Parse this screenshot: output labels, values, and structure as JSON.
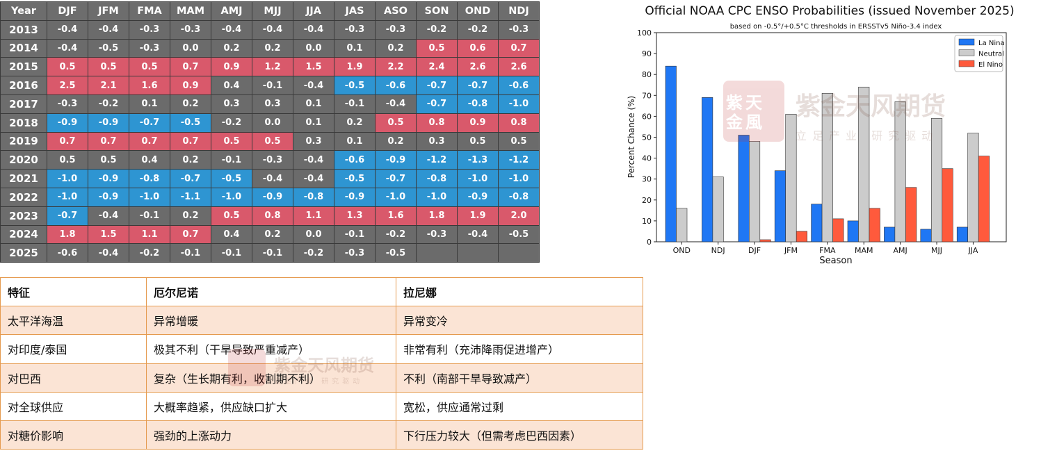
{
  "oni_table": {
    "year_header": "Year",
    "seasons": [
      "DJF",
      "JFM",
      "FMA",
      "MAM",
      "AMJ",
      "MJJ",
      "JJA",
      "JAS",
      "ASO",
      "SON",
      "OND",
      "NDJ"
    ],
    "rows": [
      {
        "year": "2013",
        "values": [
          "-0.4",
          "-0.4",
          "-0.3",
          "-0.3",
          "-0.4",
          "-0.4",
          "-0.4",
          "-0.3",
          "-0.3",
          "-0.2",
          "-0.2",
          "-0.3"
        ],
        "phase": [
          "n",
          "n",
          "n",
          "n",
          "n",
          "n",
          "n",
          "n",
          "n",
          "n",
          "n",
          "n"
        ]
      },
      {
        "year": "2014",
        "values": [
          "-0.4",
          "-0.5",
          "-0.3",
          "0.0",
          "0.2",
          "0.2",
          "0.0",
          "0.1",
          "0.2",
          "0.5",
          "0.6",
          "0.7"
        ],
        "phase": [
          "n",
          "n",
          "n",
          "n",
          "n",
          "n",
          "n",
          "n",
          "n",
          "w",
          "w",
          "w"
        ]
      },
      {
        "year": "2015",
        "values": [
          "0.5",
          "0.5",
          "0.5",
          "0.7",
          "0.9",
          "1.2",
          "1.5",
          "1.9",
          "2.2",
          "2.4",
          "2.6",
          "2.6"
        ],
        "phase": [
          "w",
          "w",
          "w",
          "w",
          "w",
          "w",
          "w",
          "w",
          "w",
          "w",
          "w",
          "w"
        ]
      },
      {
        "year": "2016",
        "values": [
          "2.5",
          "2.1",
          "1.6",
          "0.9",
          "0.4",
          "-0.1",
          "-0.4",
          "-0.5",
          "-0.6",
          "-0.7",
          "-0.7",
          "-0.6"
        ],
        "phase": [
          "w",
          "w",
          "w",
          "w",
          "n",
          "n",
          "n",
          "c",
          "c",
          "c",
          "c",
          "c"
        ]
      },
      {
        "year": "2017",
        "values": [
          "-0.3",
          "-0.2",
          "0.1",
          "0.2",
          "0.3",
          "0.3",
          "0.1",
          "-0.1",
          "-0.4",
          "-0.7",
          "-0.8",
          "-1.0"
        ],
        "phase": [
          "n",
          "n",
          "n",
          "n",
          "n",
          "n",
          "n",
          "n",
          "n",
          "c",
          "c",
          "c"
        ]
      },
      {
        "year": "2018",
        "values": [
          "-0.9",
          "-0.9",
          "-0.7",
          "-0.5",
          "-0.2",
          "0.0",
          "0.1",
          "0.2",
          "0.5",
          "0.8",
          "0.9",
          "0.8"
        ],
        "phase": [
          "c",
          "c",
          "c",
          "c",
          "n",
          "n",
          "n",
          "n",
          "w",
          "w",
          "w",
          "w"
        ]
      },
      {
        "year": "2019",
        "values": [
          "0.7",
          "0.7",
          "0.7",
          "0.7",
          "0.5",
          "0.5",
          "0.3",
          "0.1",
          "0.2",
          "0.3",
          "0.5",
          "0.5"
        ],
        "phase": [
          "w",
          "w",
          "w",
          "w",
          "w",
          "w",
          "n",
          "n",
          "n",
          "n",
          "n",
          "n"
        ]
      },
      {
        "year": "2020",
        "values": [
          "0.5",
          "0.5",
          "0.4",
          "0.2",
          "-0.1",
          "-0.3",
          "-0.4",
          "-0.6",
          "-0.9",
          "-1.2",
          "-1.3",
          "-1.2"
        ],
        "phase": [
          "n",
          "n",
          "n",
          "n",
          "n",
          "n",
          "n",
          "c",
          "c",
          "c",
          "c",
          "c"
        ]
      },
      {
        "year": "2021",
        "values": [
          "-1.0",
          "-0.9",
          "-0.8",
          "-0.7",
          "-0.5",
          "-0.4",
          "-0.4",
          "-0.5",
          "-0.7",
          "-0.8",
          "-1.0",
          "-1.0"
        ],
        "phase": [
          "c",
          "c",
          "c",
          "c",
          "c",
          "n",
          "n",
          "c",
          "c",
          "c",
          "c",
          "c"
        ]
      },
      {
        "year": "2022",
        "values": [
          "-1.0",
          "-0.9",
          "-1.0",
          "-1.1",
          "-1.0",
          "-0.9",
          "-0.8",
          "-0.9",
          "-1.0",
          "-1.0",
          "-0.9",
          "-0.8"
        ],
        "phase": [
          "c",
          "c",
          "c",
          "c",
          "c",
          "c",
          "c",
          "c",
          "c",
          "c",
          "c",
          "c"
        ]
      },
      {
        "year": "2023",
        "values": [
          "-0.7",
          "-0.4",
          "-0.1",
          "0.2",
          "0.5",
          "0.8",
          "1.1",
          "1.3",
          "1.6",
          "1.8",
          "1.9",
          "2.0"
        ],
        "phase": [
          "c",
          "n",
          "n",
          "n",
          "w",
          "w",
          "w",
          "w",
          "w",
          "w",
          "w",
          "w"
        ]
      },
      {
        "year": "2024",
        "values": [
          "1.8",
          "1.5",
          "1.1",
          "0.7",
          "0.4",
          "0.2",
          "0.0",
          "-0.1",
          "-0.2",
          "-0.3",
          "-0.4",
          "-0.5"
        ],
        "phase": [
          "w",
          "w",
          "w",
          "w",
          "n",
          "n",
          "n",
          "n",
          "n",
          "n",
          "n",
          "n"
        ]
      },
      {
        "year": "2025",
        "values": [
          "-0.6",
          "-0.4",
          "-0.2",
          "-0.1",
          "-0.1",
          "-0.1",
          "-0.2",
          "-0.3",
          "-0.5",
          "",
          "",
          ""
        ],
        "phase": [
          "n",
          "n",
          "n",
          "n",
          "n",
          "n",
          "n",
          "n",
          "n",
          "e",
          "e",
          "e"
        ]
      }
    ]
  },
  "chart_data": {
    "type": "bar",
    "title": "Official NOAA CPC ENSO Probabilities (issued November 2025)",
    "subtitle": "based on -0.5°/+0.5°C thresholds in ERSSTv5 Niño-3.4 index",
    "xlabel": "Season",
    "ylabel": "Percent Chance (%)",
    "ylim": [
      0,
      100
    ],
    "yticks": [
      0,
      10,
      20,
      30,
      40,
      50,
      60,
      70,
      80,
      90,
      100
    ],
    "categories": [
      "OND",
      "NDJ",
      "DJF",
      "JFM",
      "FMA",
      "MAM",
      "AMJ",
      "MJJ",
      "JJA"
    ],
    "series": [
      {
        "name": "La Nina",
        "color": "#1f77f4",
        "values": [
          84,
          69,
          51,
          34,
          18,
          10,
          7,
          6,
          7
        ]
      },
      {
        "name": "Neutral",
        "color": "#cccccc",
        "values": [
          16,
          31,
          48,
          61,
          71,
          74,
          67,
          59,
          52
        ]
      },
      {
        "name": "El Nino",
        "color": "#ff5a3c",
        "values": [
          0,
          0,
          1,
          5,
          11,
          16,
          26,
          35,
          41
        ]
      }
    ],
    "legend_position": "top-right",
    "grid": false
  },
  "comparison": {
    "headers": [
      "特征",
      "厄尔尼诺",
      "拉尼娜"
    ],
    "rows": [
      [
        "太平洋海温",
        "异常增暖",
        "异常变冷"
      ],
      [
        "对印度/泰国",
        "极其不利（干旱导致严重减产）",
        "非常有利（充沛降雨促进增产）"
      ],
      [
        "对巴西",
        "复杂（生长期有利，收割期不利）",
        "不利（南部干旱导致减产）"
      ],
      [
        "对全球供应",
        "大概率趋紧，供应缺口扩大",
        "宽松，供应通常过剩"
      ],
      [
        "对糖价影响",
        "强劲的上涨动力",
        "下行压力较大（但需考虑巴西因素）"
      ]
    ]
  },
  "watermark": {
    "logo_glyphs": "紫天金風",
    "name": "紫金天风期货",
    "slogan": "立足产业 研究驱动"
  }
}
